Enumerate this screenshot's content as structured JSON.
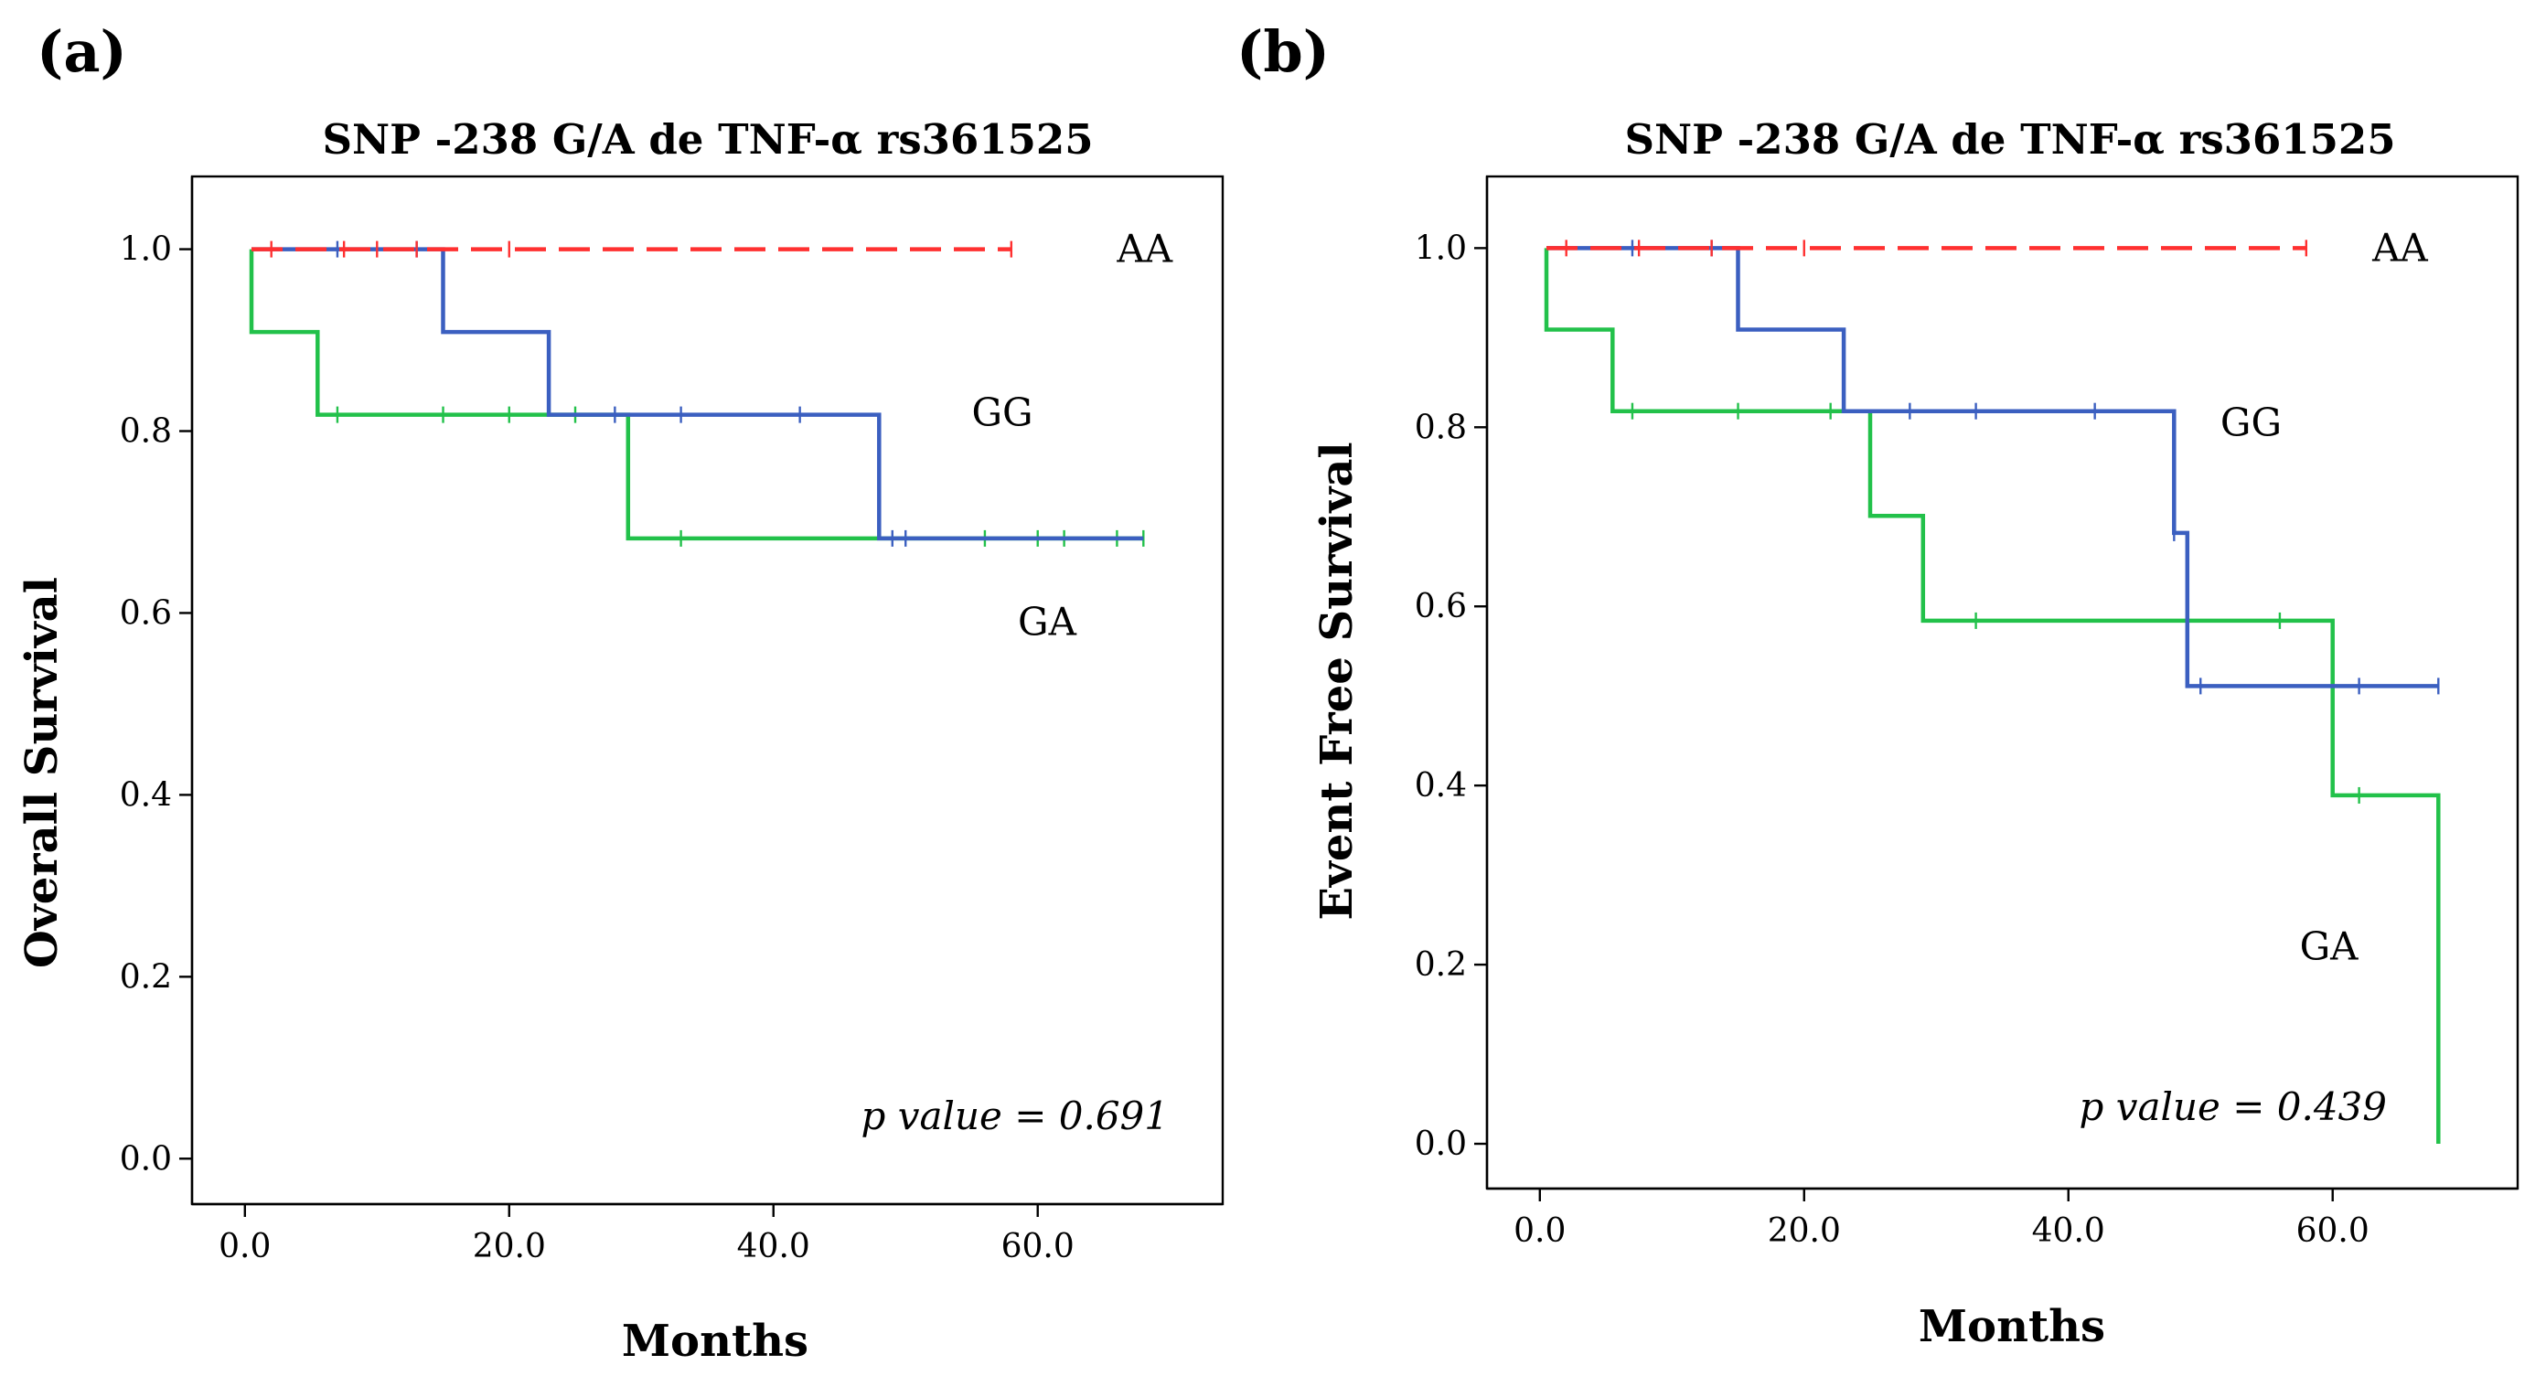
{
  "panels": [
    {
      "panel_label": "(a)",
      "chart_data": {
        "type": "line",
        "subtype": "kaplan-meier step",
        "title": "SNP -238 G/A de TNF-α rs361525",
        "xlabel": "Months",
        "ylabel": "Overall Survival",
        "xlim": [
          -4,
          74
        ],
        "ylim": [
          -0.05,
          1.08
        ],
        "xticks": [
          0,
          20,
          40,
          60
        ],
        "xtick_labels": [
          "0.0",
          "20.0",
          "40.0",
          "60.0"
        ],
        "yticks": [
          0,
          0.2,
          0.4,
          0.6,
          0.8,
          1.0
        ],
        "ytick_labels": [
          "0.0",
          "0.2",
          "0.4",
          "0.6",
          "0.8",
          "1.0"
        ],
        "annotation": "p value = 0.691",
        "series": [
          {
            "name": "AA",
            "color": "#ff3030",
            "dash": true,
            "steps": [
              [
                0.5,
                1.0
              ],
              [
                58,
                1.0
              ]
            ],
            "censor": [
              [
                2,
                1.0
              ],
              [
                7.5,
                1.0
              ],
              [
                10,
                1.0
              ],
              [
                13,
                1.0
              ],
              [
                20,
                1.0
              ],
              [
                58,
                1.0
              ]
            ],
            "label_at": [
              66,
              1.0
            ]
          },
          {
            "name": "GG",
            "color": "#3b5fc0",
            "dash": false,
            "steps": [
              [
                0.5,
                1.0
              ],
              [
                15,
                1.0
              ],
              [
                15,
                0.909
              ],
              [
                23,
                0.909
              ],
              [
                23,
                0.818
              ],
              [
                48,
                0.818
              ],
              [
                48,
                0.682
              ],
              [
                68,
                0.682
              ]
            ],
            "censor": [
              [
                7,
                1.0
              ],
              [
                13,
                1.0
              ],
              [
                28,
                0.818
              ],
              [
                33,
                0.818
              ],
              [
                42,
                0.818
              ],
              [
                49,
                0.682
              ],
              [
                50,
                0.682
              ]
            ],
            "label_at": [
              55,
              0.82
            ]
          },
          {
            "name": "GA",
            "color": "#22c14a",
            "dash": false,
            "steps": [
              [
                0.5,
                1.0
              ],
              [
                0.5,
                0.909
              ],
              [
                5.5,
                0.909
              ],
              [
                5.5,
                0.818
              ],
              [
                29,
                0.818
              ],
              [
                29,
                0.682
              ],
              [
                68,
                0.682
              ]
            ],
            "censor": [
              [
                7,
                0.818
              ],
              [
                15,
                0.818
              ],
              [
                20,
                0.818
              ],
              [
                25,
                0.818
              ],
              [
                33,
                0.682
              ],
              [
                56,
                0.682
              ],
              [
                60,
                0.682
              ],
              [
                62,
                0.682
              ],
              [
                66,
                0.682
              ],
              [
                68,
                0.682
              ]
            ],
            "label_at": [
              58.5,
              0.59
            ]
          }
        ]
      }
    },
    {
      "panel_label": "(b)",
      "chart_data": {
        "type": "line",
        "subtype": "kaplan-meier step",
        "title": "SNP -238 G/A de TNF-α rs361525",
        "xlabel": "Months",
        "ylabel": "Event Free Survival",
        "xlim": [
          -4,
          74
        ],
        "ylim": [
          -0.05,
          1.08
        ],
        "xticks": [
          0,
          20,
          40,
          60
        ],
        "xtick_labels": [
          "0.0",
          "20.0",
          "40.0",
          "60.0"
        ],
        "yticks": [
          0,
          0.2,
          0.4,
          0.6,
          0.8,
          1.0
        ],
        "ytick_labels": [
          "0.0",
          "0.2",
          "0.4",
          "0.6",
          "0.8",
          "1.0"
        ],
        "annotation": "p value = 0.439",
        "series": [
          {
            "name": "AA",
            "color": "#ff3030",
            "dash": true,
            "steps": [
              [
                0.5,
                1.0
              ],
              [
                58,
                1.0
              ]
            ],
            "censor": [
              [
                2,
                1.0
              ],
              [
                7.5,
                1.0
              ],
              [
                13,
                1.0
              ],
              [
                20,
                1.0
              ],
              [
                58,
                1.0
              ]
            ],
            "label_at": [
              63,
              1.0
            ]
          },
          {
            "name": "GG",
            "color": "#3b5fc0",
            "dash": false,
            "steps": [
              [
                0.5,
                1.0
              ],
              [
                15,
                1.0
              ],
              [
                15,
                0.909
              ],
              [
                23,
                0.909
              ],
              [
                23,
                0.818
              ],
              [
                48,
                0.818
              ],
              [
                48,
                0.682
              ],
              [
                49,
                0.682
              ],
              [
                49,
                0.511
              ],
              [
                68,
                0.511
              ]
            ],
            "censor": [
              [
                7,
                1.0
              ],
              [
                13,
                1.0
              ],
              [
                28,
                0.818
              ],
              [
                33,
                0.818
              ],
              [
                42,
                0.818
              ],
              [
                48,
                0.682
              ],
              [
                50,
                0.511
              ],
              [
                62,
                0.511
              ],
              [
                68,
                0.511
              ]
            ],
            "label_at": [
              51.5,
              0.805
            ]
          },
          {
            "name": "GA",
            "color": "#22c14a",
            "dash": false,
            "steps": [
              [
                0.5,
                1.0
              ],
              [
                0.5,
                0.909
              ],
              [
                5.5,
                0.909
              ],
              [
                5.5,
                0.818
              ],
              [
                25,
                0.818
              ],
              [
                25,
                0.701
              ],
              [
                29,
                0.701
              ],
              [
                29,
                0.584
              ],
              [
                60,
                0.584
              ],
              [
                60,
                0.389
              ],
              [
                68,
                0.389
              ],
              [
                68,
                0.0
              ]
            ],
            "censor": [
              [
                7,
                0.818
              ],
              [
                15,
                0.818
              ],
              [
                22,
                0.818
              ],
              [
                33,
                0.584
              ],
              [
                56,
                0.584
              ],
              [
                62,
                0.389
              ]
            ],
            "label_at": [
              57.5,
              0.22
            ]
          }
        ]
      }
    }
  ]
}
